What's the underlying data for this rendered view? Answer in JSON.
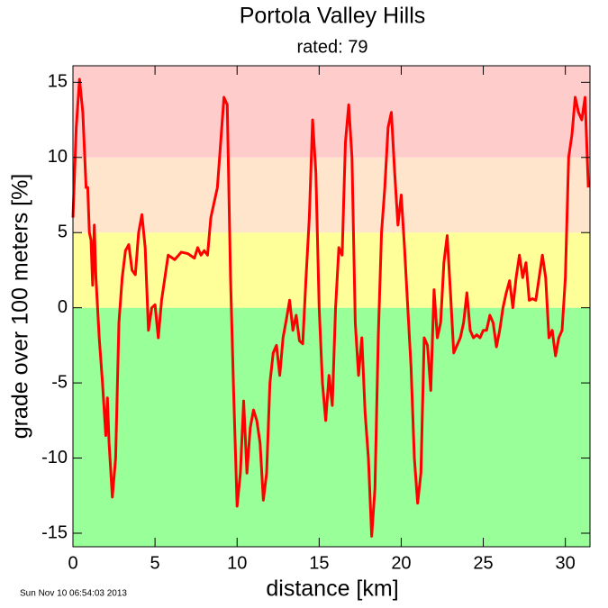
{
  "chart_data": {
    "type": "line",
    "title": "Portola Valley Hills",
    "subtitle": "rated: 79",
    "x_label": "distance [km]",
    "y_label": "grade over 100 meters [%]",
    "timestamp": "Sun Nov 10 06:54:03 2013",
    "color": "#ff0000",
    "xlim": [
      0,
      31.5
    ],
    "ylim": [
      -15.9,
      16.1
    ],
    "xticks": [
      0,
      5,
      10,
      15,
      20,
      25,
      30
    ],
    "yticks": [
      -15,
      -10,
      -5,
      0,
      5,
      10,
      15
    ],
    "bands": [
      {
        "from": -15.9,
        "to": 0,
        "color": "#99ff99"
      },
      {
        "from": 0,
        "to": 5,
        "color": "#ffff99"
      },
      {
        "from": 5,
        "to": 10,
        "color": "#ffe5cc"
      },
      {
        "from": 10,
        "to": 16.1,
        "color": "#ffcccc"
      }
    ],
    "x": [
      0,
      0.2,
      0.4,
      0.6,
      0.8,
      0.9,
      1.0,
      1.1,
      1.2,
      1.3,
      1.4,
      1.6,
      1.8,
      2.0,
      2.1,
      2.2,
      2.4,
      2.6,
      2.8,
      3.0,
      3.2,
      3.4,
      3.6,
      3.8,
      4.0,
      4.2,
      4.4,
      4.6,
      4.8,
      5.0,
      5.2,
      5.4,
      5.6,
      5.8,
      6.2,
      6.6,
      7.0,
      7.4,
      7.6,
      7.8,
      8.0,
      8.2,
      8.4,
      8.8,
      9.0,
      9.2,
      9.4,
      9.6,
      9.8,
      10.0,
      10.2,
      10.4,
      10.6,
      10.8,
      11.0,
      11.2,
      11.4,
      11.6,
      11.8,
      12.0,
      12.2,
      12.4,
      12.6,
      12.8,
      13.0,
      13.2,
      13.4,
      13.6,
      13.8,
      14.0,
      14.2,
      14.4,
      14.6,
      14.8,
      15.0,
      15.2,
      15.4,
      15.6,
      15.8,
      16.0,
      16.2,
      16.4,
      16.6,
      16.8,
      17.0,
      17.2,
      17.4,
      17.6,
      17.8,
      18.0,
      18.2,
      18.4,
      18.6,
      18.8,
      19.0,
      19.2,
      19.4,
      19.6,
      19.8,
      20.0,
      20.2,
      20.4,
      20.6,
      20.8,
      21.0,
      21.2,
      21.4,
      21.6,
      21.8,
      22.0,
      22.2,
      22.4,
      22.6,
      22.8,
      23.0,
      23.2,
      23.4,
      23.6,
      23.8,
      24.0,
      24.2,
      24.4,
      24.6,
      24.8,
      25.0,
      25.2,
      25.4,
      25.6,
      25.8,
      26.0,
      26.2,
      26.4,
      26.6,
      26.8,
      27.0,
      27.2,
      27.4,
      27.6,
      27.8,
      28.0,
      28.2,
      28.4,
      28.6,
      28.8,
      29.0,
      29.2,
      29.4,
      29.6,
      29.8,
      30.0,
      30.2,
      30.4,
      30.6,
      30.8,
      31.0,
      31.2,
      31.4
    ],
    "values": [
      6,
      12,
      15.2,
      13,
      8,
      8,
      5,
      4.5,
      1.5,
      5.5,
      2,
      -2,
      -5,
      -8.5,
      -6,
      -9,
      -12.6,
      -10,
      -1,
      2,
      3.8,
      4.2,
      2.5,
      2.2,
      5,
      6.2,
      4,
      -1.5,
      0,
      0.2,
      -2,
      0.5,
      2,
      3.5,
      3.2,
      3.7,
      3.6,
      3.3,
      4,
      3.5,
      3.8,
      3.5,
      6,
      8,
      11,
      14,
      13.5,
      2,
      -6,
      -13.2,
      -11,
      -6.2,
      -11,
      -8,
      -6.8,
      -7.5,
      -9,
      -12.8,
      -11,
      -5,
      -3,
      -2.5,
      -4.5,
      -2,
      -0.8,
      0.5,
      -1.5,
      -0.5,
      -2.2,
      -2.4,
      2,
      6,
      12.5,
      9,
      0,
      -5,
      -7.5,
      -4.5,
      -6.5,
      0,
      4,
      3.5,
      11,
      13.5,
      10,
      -1,
      -4.5,
      -2,
      -7,
      -10,
      -15.2,
      -12,
      -2,
      5,
      8,
      12,
      13,
      9,
      5.5,
      7.5,
      4,
      0,
      -4,
      -10,
      -13,
      -11,
      -2,
      -2.5,
      -5.5,
      1.2,
      -2,
      -1,
      3,
      4.8,
      1,
      -3,
      -2.5,
      -2,
      -1,
      1,
      -1.5,
      -2,
      -1.8,
      -2,
      -1.5,
      -1.5,
      -0.5,
      -1,
      -2.6,
      -1.5,
      0,
      1,
      1.8,
      0,
      2,
      3.5,
      2,
      3,
      0.5,
      0.6,
      0.5,
      2,
      3.5,
      2,
      -2,
      -1.5,
      -3.2,
      -2,
      -1.5,
      2,
      10,
      11.5,
      14,
      13,
      12.5,
      14,
      8
    ]
  }
}
